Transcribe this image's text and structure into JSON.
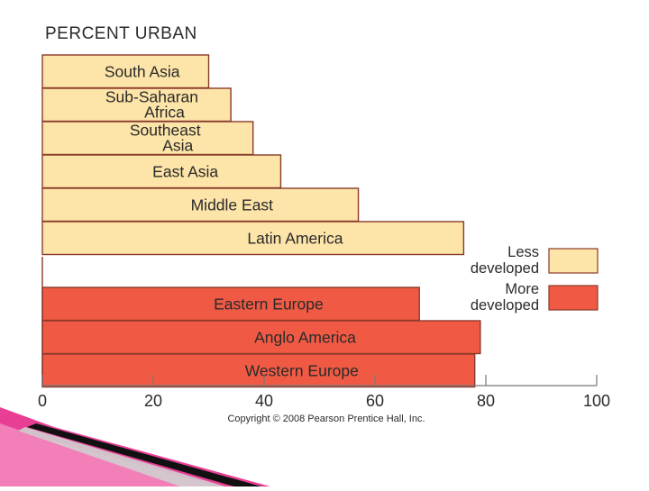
{
  "chart_data": {
    "type": "bar",
    "orientation": "horizontal",
    "title": "PERCENT URBAN",
    "xlim": [
      0,
      100
    ],
    "x_ticks": [
      "0",
      "20",
      "40",
      "60",
      "80",
      "100"
    ],
    "groups": [
      {
        "name": "Less developed",
        "color": "#fde4a8",
        "items": [
          {
            "category": "South Asia",
            "value": 30
          },
          {
            "category": "Sub-Saharan Africa",
            "value": 34
          },
          {
            "category": "Southeast Asia",
            "value": 38
          },
          {
            "category": "East Asia",
            "value": 43
          },
          {
            "category": "Middle East",
            "value": 57
          },
          {
            "category": "Latin America",
            "value": 76
          }
        ]
      },
      {
        "name": "More developed",
        "color": "#f05a44",
        "items": [
          {
            "category": "Eastern Europe",
            "value": 68
          },
          {
            "category": "Anglo America",
            "value": 79
          },
          {
            "category": "Western Europe",
            "value": 78
          }
        ]
      }
    ],
    "legend": {
      "placement": "right",
      "entries": [
        {
          "label_lines": [
            "Less",
            "developed"
          ],
          "color": "#fde4a8"
        },
        {
          "label_lines": [
            "More",
            "developed"
          ],
          "color": "#f05a44"
        }
      ]
    },
    "label_lines": {
      "Sub-Saharan Africa": [
        "Sub-Saharan",
        "Africa"
      ],
      "Southeast Asia": [
        "Southeast",
        "Asia"
      ]
    },
    "grid": false,
    "copyright": "Copyright © 2008 Pearson Prentice Hall, Inc."
  },
  "colors": {
    "bar_outline": "#8a3a2a",
    "text": "#2a2a2a",
    "slide_accent": "#e0358a"
  }
}
